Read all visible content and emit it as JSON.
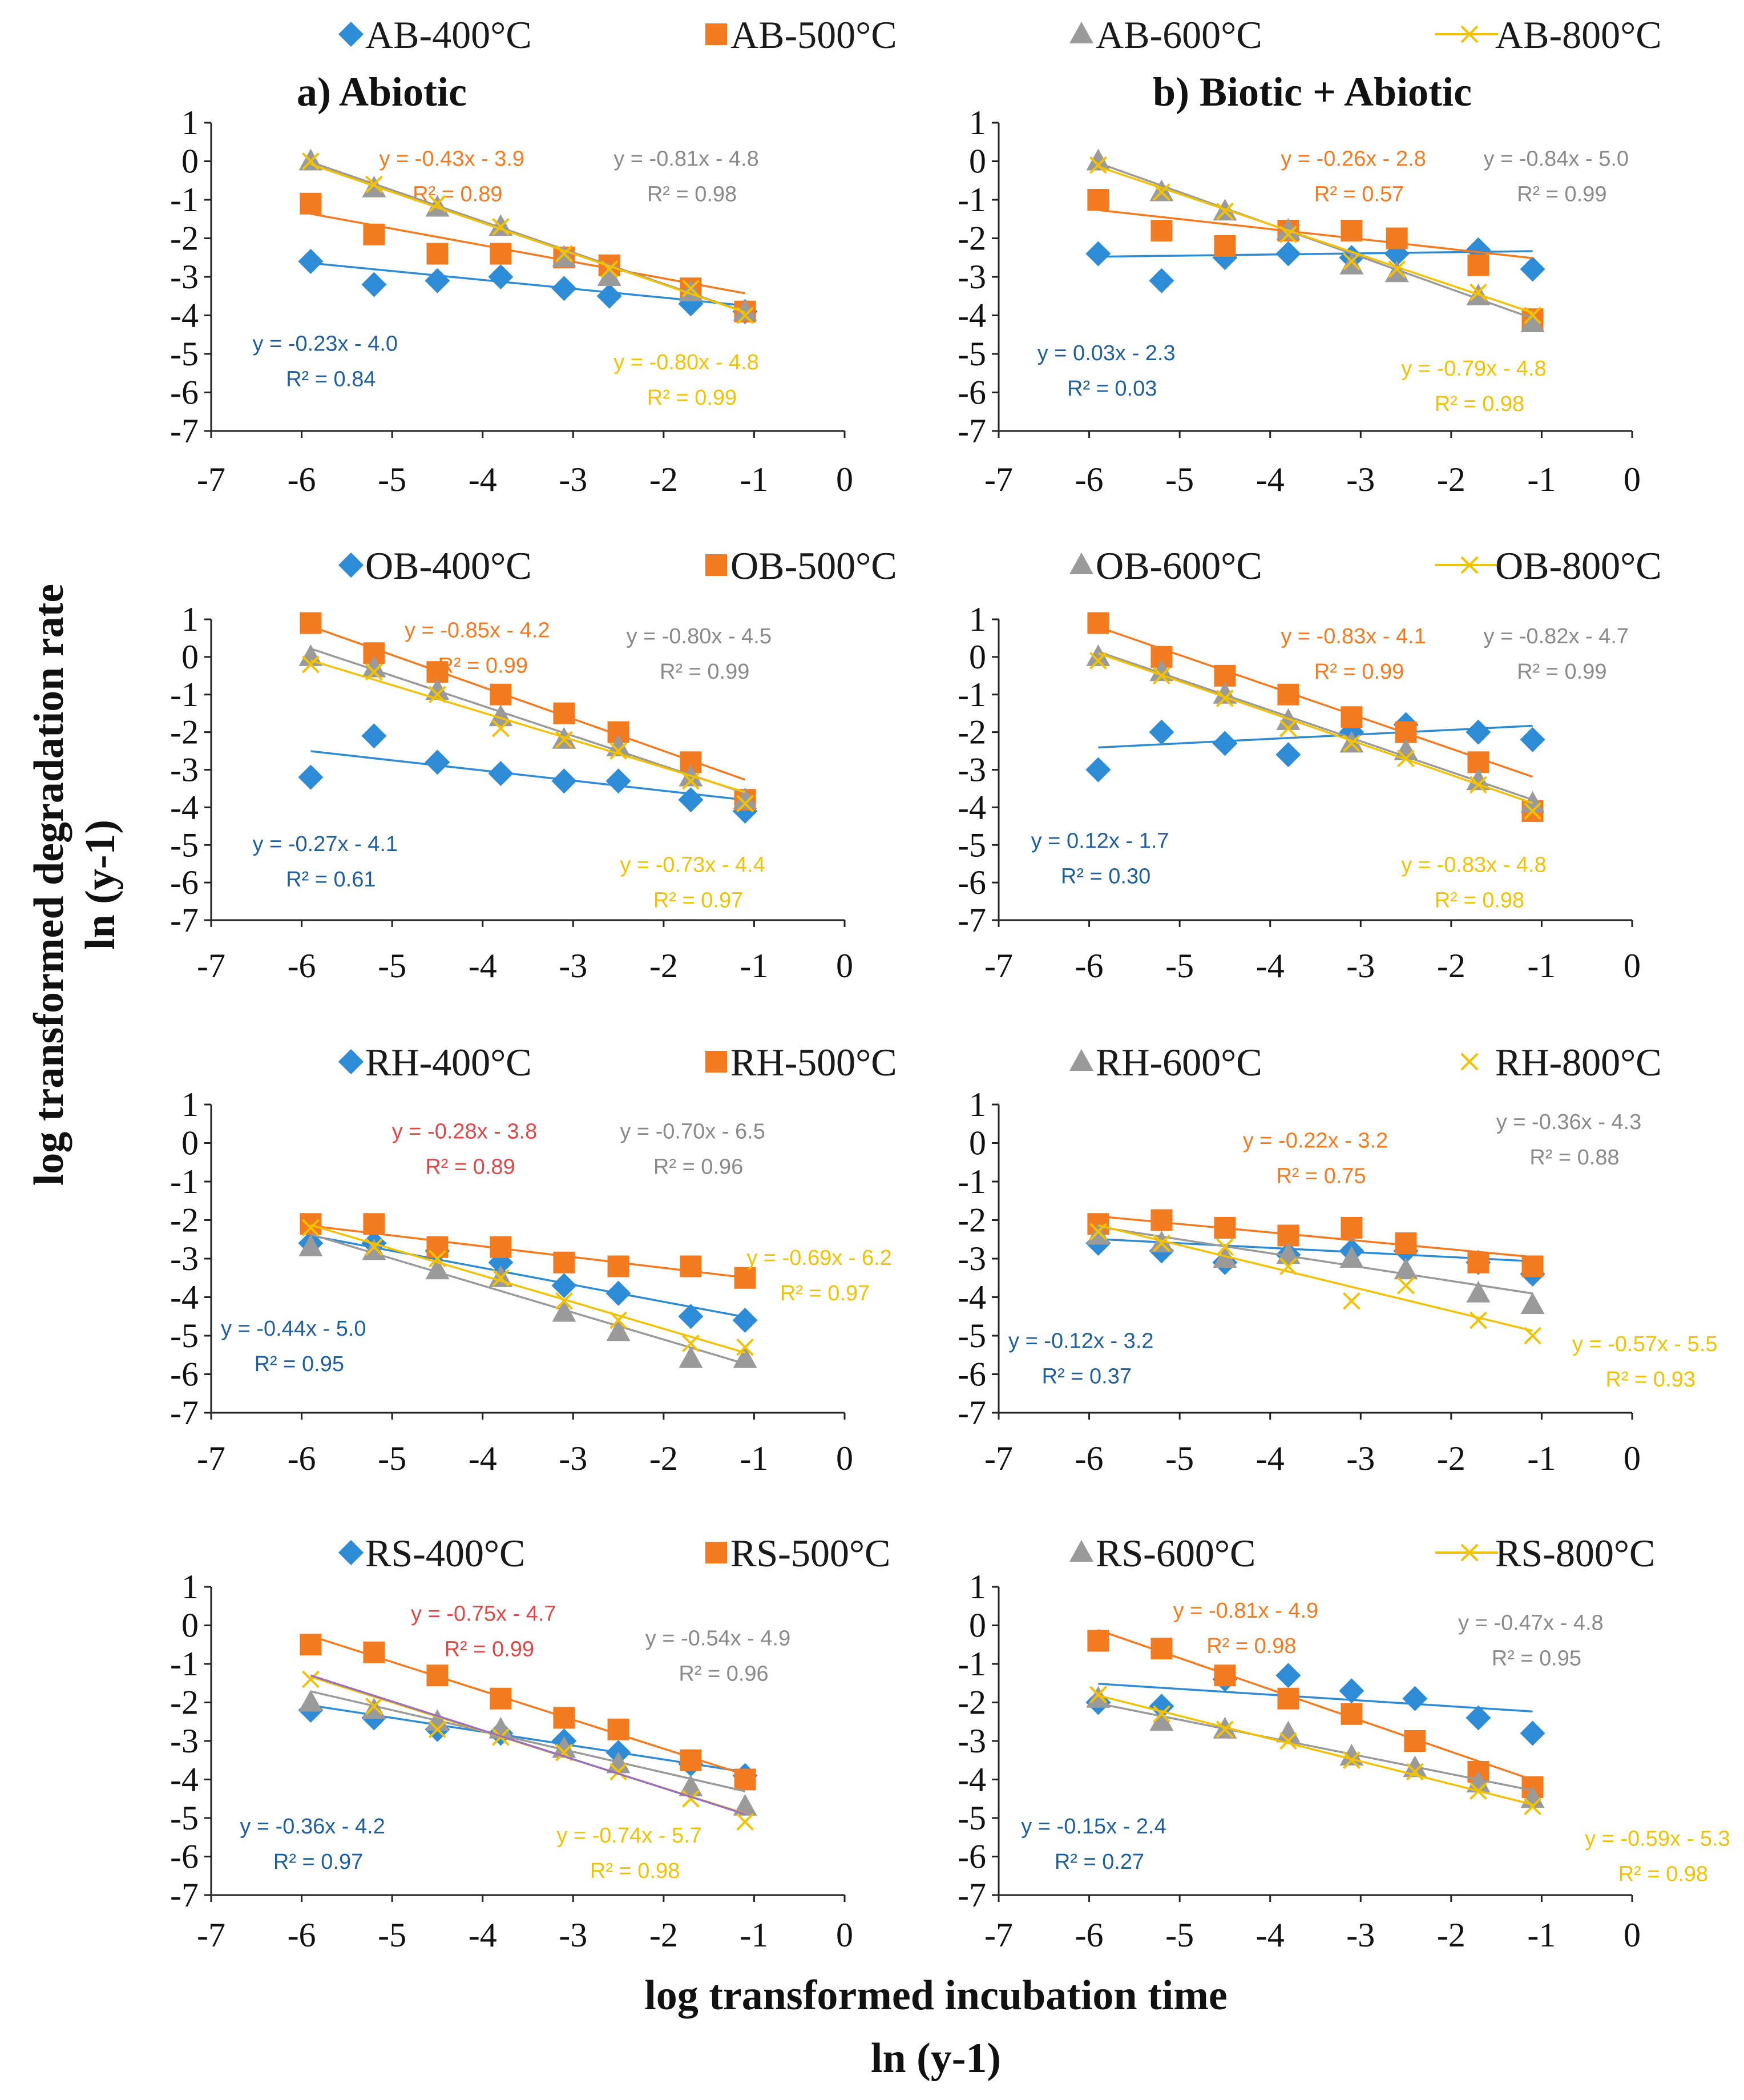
{
  "figure": {
    "y_axis_label": "log transformed degradation rate",
    "y_axis_unit": "ln (y-1)",
    "x_axis_label": "log transformed incubation time",
    "x_axis_unit": "ln (y-1)"
  },
  "colors": {
    "s400": "#2E8BD6",
    "s500": "#F47A20",
    "s600": "#9A9A9A",
    "s800": "#F2C200",
    "eq400": "#1F5F9E",
    "eq500": "#F47A20",
    "eq500_alt": "#E04848",
    "eq600": "#8A8A8A",
    "eq800": "#F2C200",
    "rs_extra_line": "#9A6FC0"
  },
  "chart_data": [
    {
      "id": "ab-abiotic",
      "type": "scatter",
      "title": "a) Abiotic",
      "xlim": [
        -7,
        0
      ],
      "ylim": [
        -7,
        1
      ],
      "x": [
        -5.9,
        -5.2,
        -4.5,
        -3.8,
        -3.1,
        -2.6,
        -1.7,
        -1.1
      ],
      "legend": [
        "AB-400°C",
        "AB-500°C",
        "AB-600°C",
        "AB-800°C"
      ],
      "series": [
        {
          "name": "AB-400°C",
          "values": [
            -2.6,
            -3.2,
            -3.1,
            -3.0,
            -3.3,
            -3.5,
            -3.7,
            -3.9
          ],
          "slope": -0.23,
          "intercept": -4.0,
          "equation": "y = -0.23x - 4.0",
          "r2": "R² = 0.84"
        },
        {
          "name": "AB-500°C",
          "values": [
            -1.1,
            -1.9,
            -2.4,
            -2.4,
            -2.5,
            -2.7,
            -3.3,
            -3.9
          ],
          "slope": -0.43,
          "intercept": -3.9,
          "equation": "y = -0.43x - 3.9",
          "r2": "R² = 0.89"
        },
        {
          "name": "AB-600°C",
          "values": [
            0.0,
            -0.7,
            -1.2,
            -1.7,
            -2.5,
            -3.0,
            -3.4,
            -3.9
          ],
          "slope": -0.81,
          "intercept": -4.8,
          "equation": "y = -0.81x - 4.8",
          "r2": "R² = 0.98"
        },
        {
          "name": "AB-800°C",
          "values": [
            0.0,
            -0.6,
            -1.1,
            -1.7,
            -2.4,
            -2.8,
            -3.3,
            -4.0
          ],
          "slope": -0.8,
          "intercept": -4.8,
          "equation": "y = -0.80x - 4.8",
          "r2": "R² = 0.99"
        }
      ]
    },
    {
      "id": "ab-biotic",
      "type": "scatter",
      "title": "b) Biotic + Abiotic",
      "xlim": [
        -7,
        0
      ],
      "ylim": [
        -7,
        1
      ],
      "x": [
        -5.9,
        -5.2,
        -4.5,
        -3.8,
        -3.1,
        -2.6,
        -1.7,
        -1.1
      ],
      "legend": [],
      "series": [
        {
          "name": "AB-400°C",
          "values": [
            -2.4,
            -3.1,
            -2.5,
            -2.4,
            -2.5,
            -2.4,
            -2.3,
            -2.8
          ],
          "slope": 0.03,
          "intercept": -2.3,
          "equation": "y = 0.03x - 2.3",
          "r2": "R² = 0.03"
        },
        {
          "name": "AB-500°C",
          "values": [
            -1.0,
            -1.8,
            -2.2,
            -1.8,
            -1.8,
            -2.0,
            -2.7,
            -4.1
          ],
          "slope": -0.26,
          "intercept": -2.8,
          "equation": "y = -0.26x - 2.8",
          "r2": "R² = 0.57"
        },
        {
          "name": "AB-600°C",
          "values": [
            0.0,
            -0.8,
            -1.3,
            -1.8,
            -2.7,
            -2.9,
            -3.5,
            -4.2
          ],
          "slope": -0.84,
          "intercept": -5.0,
          "equation": "y = -0.84x - 5.0",
          "r2": "R² = 0.99"
        },
        {
          "name": "AB-800°C",
          "values": [
            -0.1,
            -0.8,
            -1.3,
            -1.9,
            -2.6,
            -2.8,
            -3.4,
            -4.0
          ],
          "slope": -0.79,
          "intercept": -4.8,
          "equation": "y = -0.79x - 4.8",
          "r2": "R² = 0.98"
        }
      ]
    },
    {
      "id": "ob-abiotic",
      "type": "scatter",
      "title": "",
      "xlim": [
        -7,
        0
      ],
      "ylim": [
        -7,
        1
      ],
      "x": [
        -5.9,
        -5.2,
        -4.5,
        -3.8,
        -3.1,
        -2.5,
        -1.7,
        -1.1
      ],
      "legend": [
        "OB-400°C",
        "OB-500°C",
        "OB-600°C",
        "OB-800°C"
      ],
      "series": [
        {
          "name": "OB-400°C",
          "values": [
            -3.2,
            -2.1,
            -2.8,
            -3.1,
            -3.3,
            -3.3,
            -3.8,
            -4.1
          ],
          "slope": -0.27,
          "intercept": -4.1,
          "equation": "y = -0.27x - 4.1",
          "r2": "R² = 0.61"
        },
        {
          "name": "OB-500°C",
          "values": [
            0.9,
            0.1,
            -0.4,
            -1.0,
            -1.5,
            -2.0,
            -2.8,
            -3.8
          ],
          "slope": -0.85,
          "intercept": -4.2,
          "equation": "y = -0.85x - 4.2",
          "r2": "R² = 0.99"
        },
        {
          "name": "OB-600°C",
          "values": [
            0.0,
            -0.3,
            -0.9,
            -1.6,
            -2.2,
            -2.4,
            -3.2,
            -3.8
          ],
          "slope": -0.8,
          "intercept": -4.5,
          "equation": "y = -0.80x - 4.5",
          "r2": "R² = 0.99"
        },
        {
          "name": "OB-800°C",
          "values": [
            -0.2,
            -0.4,
            -1.0,
            -1.9,
            -2.2,
            -2.5,
            -3.3,
            -3.9
          ],
          "slope": -0.73,
          "intercept": -4.4,
          "equation": "y = -0.73x - 4.4",
          "r2": "R² = 0.97"
        }
      ]
    },
    {
      "id": "ob-biotic",
      "type": "scatter",
      "title": "",
      "xlim": [
        -7,
        0
      ],
      "ylim": [
        -7,
        1
      ],
      "x": [
        -5.9,
        -5.2,
        -4.5,
        -3.8,
        -3.1,
        -2.5,
        -1.7,
        -1.1
      ],
      "legend": [
        "OB-400°C",
        "OB-500°C",
        "OB-600°C",
        "OB-800°C"
      ],
      "series": [
        {
          "name": "OB-400°C",
          "values": [
            -3.0,
            -2.0,
            -2.3,
            -2.6,
            -2.0,
            -1.8,
            -2.0,
            -2.2
          ],
          "slope": 0.12,
          "intercept": -1.7,
          "equation": "y = 0.12x - 1.7",
          "r2": "R² = 0.30"
        },
        {
          "name": "OB-500°C",
          "values": [
            0.9,
            0.0,
            -0.5,
            -1.0,
            -1.6,
            -2.0,
            -2.8,
            -4.1
          ],
          "slope": -0.83,
          "intercept": -4.1,
          "equation": "y = -0.83x - 4.1",
          "r2": "R² = 0.99"
        },
        {
          "name": "OB-600°C",
          "values": [
            0.0,
            -0.4,
            -1.0,
            -1.7,
            -2.3,
            -2.5,
            -3.3,
            -3.9
          ],
          "slope": -0.82,
          "intercept": -4.7,
          "equation": "y = -0.82x - 4.7",
          "r2": "R² = 0.99"
        },
        {
          "name": "OB-800°C",
          "values": [
            -0.1,
            -0.5,
            -1.1,
            -1.9,
            -2.3,
            -2.7,
            -3.4,
            -4.1
          ],
          "slope": -0.83,
          "intercept": -4.8,
          "equation": "y = -0.83x - 4.8",
          "r2": "R² = 0.98"
        }
      ]
    },
    {
      "id": "rh-abiotic",
      "type": "scatter",
      "title": "",
      "xlim": [
        -7,
        0
      ],
      "ylim": [
        -7,
        1
      ],
      "x": [
        -5.9,
        -5.2,
        -4.5,
        -3.8,
        -3.1,
        -2.5,
        -1.7,
        -1.1
      ],
      "legend": [
        "RH-400°C",
        "RH-500°C",
        "RH-600°C",
        "RH-800°C"
      ],
      "series": [
        {
          "name": "RH-400°C",
          "values": [
            -2.6,
            -2.6,
            -2.8,
            -3.1,
            -3.7,
            -3.9,
            -4.5,
            -4.6
          ],
          "slope": -0.44,
          "intercept": -5.0,
          "equation": "y = -0.44x - 5.0",
          "r2": "R² = 0.95"
        },
        {
          "name": "RH-500°C",
          "values": [
            -2.1,
            -2.1,
            -2.7,
            -2.7,
            -3.1,
            -3.2,
            -3.2,
            -3.5
          ],
          "slope": -0.28,
          "intercept": -3.8,
          "equation": "y = -0.28x - 3.8",
          "r2": "R² = 0.89"
        },
        {
          "name": "RH-600°C",
          "values": [
            -2.7,
            -2.8,
            -3.3,
            -3.5,
            -4.4,
            -4.9,
            -5.6,
            -5.6
          ],
          "slope": -0.7,
          "intercept": -6.5,
          "equation": "y = -0.70x - 6.5",
          "r2": "R² = 0.96"
        },
        {
          "name": "RH-800°C",
          "values": [
            -2.2,
            -2.7,
            -3.0,
            -3.5,
            -4.1,
            -4.6,
            -5.2,
            -5.3
          ],
          "slope": -0.69,
          "intercept": -6.2,
          "equation": "y = -0.69x - 6.2",
          "r2": "R² = 0.97"
        }
      ]
    },
    {
      "id": "rh-biotic",
      "type": "scatter",
      "title": "",
      "xlim": [
        -7,
        0
      ],
      "ylim": [
        -7,
        1
      ],
      "x": [
        -5.9,
        -5.2,
        -4.5,
        -3.8,
        -3.1,
        -2.5,
        -1.7,
        -1.1
      ],
      "legend": [
        "RH-400°C",
        "RH-500°C",
        "RH-600°C",
        "RH-800°C"
      ],
      "series": [
        {
          "name": "RH-400°C",
          "values": [
            -2.6,
            -2.8,
            -3.1,
            -2.9,
            -2.8,
            -2.8,
            -3.1,
            -3.4
          ],
          "slope": -0.12,
          "intercept": -3.2,
          "equation": "y = -0.12x - 3.2",
          "r2": "R² = 0.37"
        },
        {
          "name": "RH-500°C",
          "values": [
            -2.1,
            -2.0,
            -2.2,
            -2.4,
            -2.2,
            -2.6,
            -3.1,
            -3.2
          ],
          "slope": -0.22,
          "intercept": -3.2,
          "equation": "y = -0.22x - 3.2",
          "r2": "R² = 0.75"
        },
        {
          "name": "RH-600°C",
          "values": [
            -2.4,
            -2.6,
            -3.0,
            -2.9,
            -3.0,
            -3.3,
            -3.9,
            -4.2
          ],
          "slope": -0.36,
          "intercept": -4.3,
          "equation": "y = -0.36x - 4.3",
          "r2": "R² = 0.88"
        },
        {
          "name": "RH-800°C",
          "values": [
            -2.3,
            -2.6,
            -2.7,
            -3.2,
            -4.1,
            -3.7,
            -4.6,
            -5.0
          ],
          "slope": -0.57,
          "intercept": -5.5,
          "equation": "y = -0.57x - 5.5",
          "r2": "R² = 0.93"
        }
      ]
    },
    {
      "id": "rs-abiotic",
      "type": "scatter",
      "title": "",
      "xlim": [
        -7,
        0
      ],
      "ylim": [
        -7,
        1
      ],
      "x": [
        -5.9,
        -5.2,
        -4.5,
        -3.8,
        -3.1,
        -2.5,
        -1.7,
        -1.1
      ],
      "legend": [
        "RS-400°C",
        "RS-500°C",
        "RS-600°C",
        "RS-800°C"
      ],
      "series": [
        {
          "name": "RS-400°C",
          "values": [
            -2.2,
            -2.4,
            -2.7,
            -2.8,
            -3.0,
            -3.3,
            -3.6,
            -3.9
          ],
          "slope": -0.36,
          "intercept": -4.2,
          "equation": "y = -0.36x - 4.2",
          "r2": "R² = 0.97"
        },
        {
          "name": "RS-500°C",
          "values": [
            -0.5,
            -0.7,
            -1.3,
            -1.9,
            -2.4,
            -2.7,
            -3.5,
            -4.0
          ],
          "slope": -0.75,
          "intercept": -4.7,
          "equation": "y = -0.75x - 4.7",
          "r2": "R² = 0.99"
        },
        {
          "name": "RS-600°C",
          "values": [
            -2.0,
            -2.2,
            -2.5,
            -2.7,
            -3.2,
            -3.6,
            -4.2,
            -4.7
          ],
          "slope": -0.54,
          "intercept": -4.9,
          "equation": "y = -0.54x - 4.9",
          "r2": "R² = 0.96"
        },
        {
          "name": "RS-800°C",
          "values": [
            -1.4,
            -2.1,
            -2.7,
            -2.9,
            -3.3,
            -3.8,
            -4.5,
            -5.1
          ],
          "slope": -0.74,
          "intercept": -5.7,
          "equation": "y = -0.74x - 5.7",
          "r2": "R² = 0.98"
        }
      ]
    },
    {
      "id": "rs-biotic",
      "type": "scatter",
      "title": "",
      "xlim": [
        -7,
        0
      ],
      "ylim": [
        -7,
        1
      ],
      "x": [
        -5.9,
        -5.2,
        -4.5,
        -3.8,
        -3.1,
        -2.4,
        -1.7,
        -1.1
      ],
      "legend": [
        "RS-400°C",
        "RS-500°C",
        "RS-600°C",
        "RS-800°C"
      ],
      "series": [
        {
          "name": "RS-400°C",
          "values": [
            -2.0,
            -2.1,
            -1.4,
            -1.3,
            -1.7,
            -1.9,
            -2.4,
            -2.8
          ],
          "slope": -0.15,
          "intercept": -2.4,
          "equation": "y = -0.15x - 2.4",
          "r2": "R² = 0.27"
        },
        {
          "name": "RS-500°C",
          "values": [
            -0.4,
            -0.6,
            -1.3,
            -1.9,
            -2.3,
            -3.0,
            -3.8,
            -4.2
          ],
          "slope": -0.81,
          "intercept": -4.9,
          "equation": "y = -0.81x - 4.9",
          "r2": "R² = 0.98"
        },
        {
          "name": "RS-600°C",
          "values": [
            -1.9,
            -2.5,
            -2.7,
            -2.8,
            -3.4,
            -3.7,
            -4.1,
            -4.5
          ],
          "slope": -0.47,
          "intercept": -4.8,
          "equation": "y = -0.47x - 4.8",
          "r2": "R² = 0.95"
        },
        {
          "name": "RS-800°C",
          "values": [
            -1.8,
            -2.3,
            -2.7,
            -3.0,
            -3.5,
            -3.8,
            -4.3,
            -4.7
          ],
          "slope": -0.59,
          "intercept": -5.3,
          "equation": "y = -0.59x - 5.3",
          "r2": "R² = 0.98"
        }
      ]
    }
  ]
}
